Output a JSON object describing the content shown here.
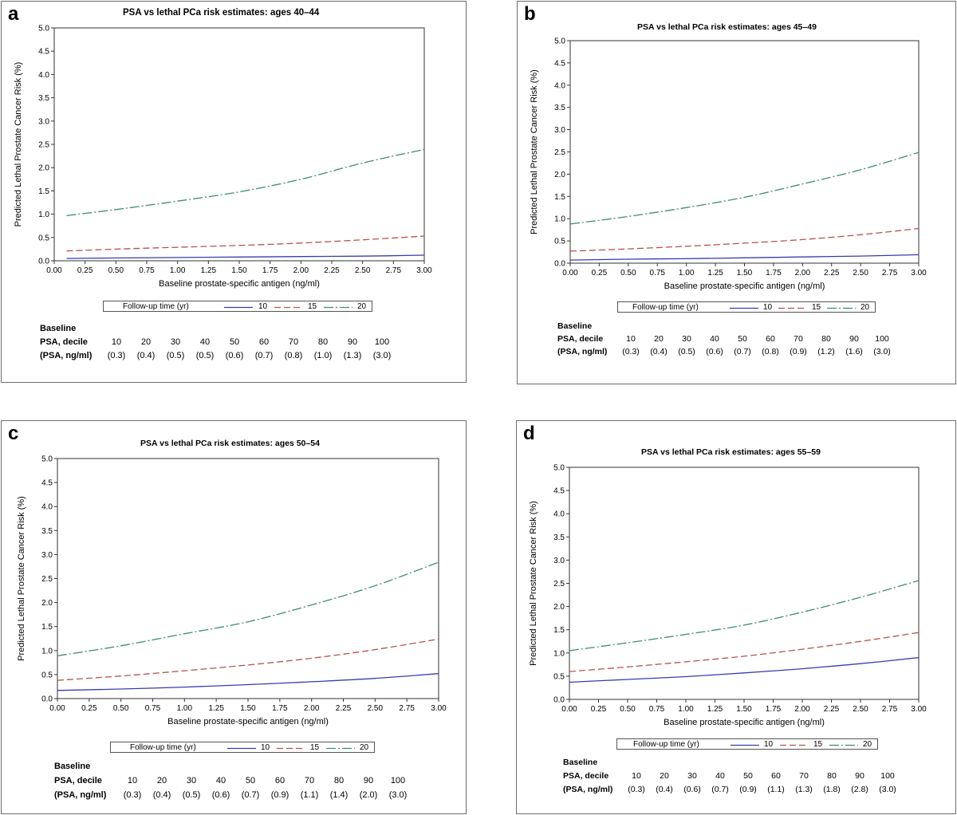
{
  "chart_data": [
    {
      "panel": "a",
      "type": "line",
      "title": "PSA vs lethal PCa risk estimates: ages 40–44",
      "xlabel": "Baseline prostate-specific antigen (ng/ml)",
      "ylabel": "Predicted Lethal Prostate Cancer Risk (%)",
      "xlim": [
        0,
        3
      ],
      "ylim": [
        0,
        5
      ],
      "x_ticks": [
        "0.00",
        "0.25",
        "0.50",
        "0.75",
        "1.00",
        "1.25",
        "1.50",
        "1.75",
        "2.00",
        "2.25",
        "2.50",
        "2.75",
        "3.00"
      ],
      "y_ticks": [
        "0.0",
        "0.5",
        "1.0",
        "1.5",
        "2.0",
        "2.5",
        "3.0",
        "3.5",
        "4.0",
        "4.5",
        "5.0"
      ],
      "x": [
        0.1,
        0.5,
        1.0,
        1.5,
        2.0,
        2.5,
        3.0
      ],
      "series": [
        {
          "name": "10",
          "color": "#3b3bb0",
          "dash": "",
          "values": [
            0.05,
            0.06,
            0.07,
            0.08,
            0.09,
            0.1,
            0.12
          ]
        },
        {
          "name": "15",
          "color": "#b5524e",
          "dash": "8 4",
          "values": [
            0.21,
            0.25,
            0.29,
            0.33,
            0.38,
            0.45,
            0.53
          ]
        },
        {
          "name": "20",
          "color": "#3f8a7c",
          "dash": "12 3 2 3",
          "values": [
            0.97,
            1.1,
            1.28,
            1.48,
            1.75,
            2.1,
            2.39
          ]
        }
      ],
      "legend": {
        "title": "Follow-up time (yr)",
        "entries": [
          "10",
          "15",
          "20"
        ]
      },
      "table": {
        "row_labels": [
          "Baseline",
          "PSA, decile",
          "(PSA, ng/ml)"
        ],
        "deciles": [
          "10",
          "20",
          "30",
          "40",
          "50",
          "60",
          "70",
          "80",
          "90",
          "100"
        ],
        "psa": [
          "(0.3)",
          "(0.4)",
          "(0.5)",
          "(0.5)",
          "(0.6)",
          "(0.7)",
          "(0.8)",
          "(1.0)",
          "(1.3)",
          "(3.0)"
        ]
      }
    },
    {
      "panel": "b",
      "type": "line",
      "title": "PSA vs lethal PCa risk estimates: ages 45–49",
      "xlabel": "Baseline prostate-specific antigen (ng/ml)",
      "ylabel": "Predicted Lethal Prostate Cancer Risk (%)",
      "xlim": [
        0,
        3
      ],
      "ylim": [
        0,
        5
      ],
      "x_ticks": [
        "0.00",
        "0.25",
        "0.50",
        "0.75",
        "1.00",
        "1.25",
        "1.50",
        "1.75",
        "2.00",
        "2.25",
        "2.50",
        "2.75",
        "3.00"
      ],
      "y_ticks": [
        "0.0",
        "0.5",
        "1.0",
        "1.5",
        "2.0",
        "2.5",
        "3.0",
        "3.5",
        "4.0",
        "4.5",
        "5.0"
      ],
      "x": [
        0.0,
        0.5,
        1.0,
        1.5,
        2.0,
        2.5,
        3.0
      ],
      "series": [
        {
          "name": "10",
          "color": "#3b3bb0",
          "dash": "",
          "values": [
            0.07,
            0.09,
            0.1,
            0.12,
            0.14,
            0.16,
            0.19
          ]
        },
        {
          "name": "15",
          "color": "#b5524e",
          "dash": "8 4",
          "values": [
            0.27,
            0.32,
            0.38,
            0.45,
            0.53,
            0.64,
            0.78
          ]
        },
        {
          "name": "20",
          "color": "#3f8a7c",
          "dash": "12 3 2 3",
          "values": [
            0.88,
            1.05,
            1.25,
            1.48,
            1.78,
            2.1,
            2.49
          ]
        }
      ],
      "legend": {
        "title": "Follow-up time (yr)",
        "entries": [
          "10",
          "15",
          "20"
        ]
      },
      "table": {
        "row_labels": [
          "Baseline",
          "PSA, decile",
          "(PSA, ng/ml)"
        ],
        "deciles": [
          "10",
          "20",
          "30",
          "40",
          "50",
          "60",
          "70",
          "80",
          "90",
          "100"
        ],
        "psa": [
          "(0.3)",
          "(0.4)",
          "(0.5)",
          "(0.6)",
          "(0.7)",
          "(0.8)",
          "(0.9)",
          "(1.2)",
          "(1.6)",
          "(3.0)"
        ]
      }
    },
    {
      "panel": "c",
      "type": "line",
      "title": "PSA vs lethal PCa risk estimates: ages 50–54",
      "xlabel": "Baseline prostate-specific antigen (ng/ml)",
      "ylabel": "Predicted Lethal Prostate Cancer Risk (%)",
      "xlim": [
        0,
        3
      ],
      "ylim": [
        0,
        5
      ],
      "x_ticks": [
        "0.00",
        "0.25",
        "0.50",
        "0.75",
        "1.00",
        "1.25",
        "1.50",
        "1.75",
        "2.00",
        "2.25",
        "2.50",
        "2.75",
        "3.00"
      ],
      "y_ticks": [
        "0.0",
        "0.5",
        "1.0",
        "1.5",
        "2.0",
        "2.5",
        "3.0",
        "3.5",
        "4.0",
        "4.5",
        "5.0"
      ],
      "x": [
        0.0,
        0.5,
        1.0,
        1.5,
        2.0,
        2.5,
        3.0
      ],
      "series": [
        {
          "name": "10",
          "color": "#3b3bb0",
          "dash": "",
          "values": [
            0.17,
            0.2,
            0.24,
            0.29,
            0.35,
            0.42,
            0.52
          ]
        },
        {
          "name": "15",
          "color": "#b5524e",
          "dash": "8 4",
          "values": [
            0.38,
            0.47,
            0.58,
            0.7,
            0.84,
            1.02,
            1.24
          ]
        },
        {
          "name": "20",
          "color": "#3f8a7c",
          "dash": "12 3 2 3",
          "values": [
            0.89,
            1.1,
            1.35,
            1.6,
            1.95,
            2.35,
            2.84
          ]
        }
      ],
      "legend": {
        "title": "Follow-up time (yr)",
        "entries": [
          "10",
          "15",
          "20"
        ]
      },
      "table": {
        "row_labels": [
          "Baseline",
          "PSA, decile",
          "(PSA, ng/ml)"
        ],
        "deciles": [
          "10",
          "20",
          "30",
          "40",
          "50",
          "60",
          "70",
          "80",
          "90",
          "100"
        ],
        "psa": [
          "(0.3)",
          "(0.4)",
          "(0.5)",
          "(0.6)",
          "(0.7)",
          "(0.9)",
          "(1.1)",
          "(1.4)",
          "(2.0)",
          "(3.0)"
        ]
      }
    },
    {
      "panel": "d",
      "type": "line",
      "title": "PSA vs lethal PCa risk estimates: ages 55–59",
      "xlabel": "Baseline prostate-specific antigen (ng/ml)",
      "ylabel": "Predicted Lethal Prostate Cancer Risk (%)",
      "xlim": [
        0,
        3
      ],
      "ylim": [
        0,
        5
      ],
      "x_ticks": [
        "0.00",
        "0.25",
        "0.50",
        "0.75",
        "1.00",
        "1.25",
        "1.50",
        "1.75",
        "2.00",
        "2.25",
        "2.50",
        "2.75",
        "3.00"
      ],
      "y_ticks": [
        "0.0",
        "0.5",
        "1.0",
        "1.5",
        "2.0",
        "2.5",
        "3.0",
        "3.5",
        "4.0",
        "4.5",
        "5.0"
      ],
      "x": [
        0.0,
        0.5,
        1.0,
        1.5,
        2.0,
        2.5,
        3.0
      ],
      "series": [
        {
          "name": "10",
          "color": "#3b3bb0",
          "dash": "",
          "values": [
            0.37,
            0.43,
            0.49,
            0.57,
            0.66,
            0.77,
            0.9
          ]
        },
        {
          "name": "15",
          "color": "#b5524e",
          "dash": "8 4",
          "values": [
            0.6,
            0.7,
            0.81,
            0.93,
            1.08,
            1.25,
            1.44
          ]
        },
        {
          "name": "20",
          "color": "#3f8a7c",
          "dash": "12 3 2 3",
          "values": [
            1.05,
            1.22,
            1.4,
            1.6,
            1.88,
            2.2,
            2.56
          ]
        }
      ],
      "legend": {
        "title": "Follow-up time (yr)",
        "entries": [
          "10",
          "15",
          "20"
        ]
      },
      "table": {
        "row_labels": [
          "Baseline",
          "PSA, decile",
          "(PSA, ng/ml)"
        ],
        "deciles": [
          "10",
          "20",
          "30",
          "40",
          "50",
          "60",
          "70",
          "80",
          "90",
          "100"
        ],
        "psa": [
          "(0.3)",
          "(0.4)",
          "(0.6)",
          "(0.7)",
          "(0.9)",
          "(1.1)",
          "(1.3)",
          "(1.8)",
          "(2.8)",
          "(3.0)"
        ]
      }
    }
  ],
  "panel_labels": [
    "a",
    "b",
    "c",
    "d"
  ]
}
